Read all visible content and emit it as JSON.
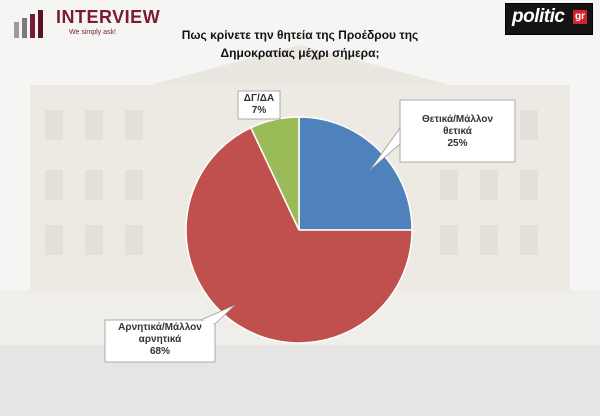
{
  "brand_left": {
    "name": "INTERVIEW",
    "tagline": "We simply ask!"
  },
  "brand_right": {
    "name": "politic",
    "suffix": "gr"
  },
  "chart_data": {
    "type": "pie",
    "title_lines": [
      "Πως κρίνετε την θητεία της Προέδρου της",
      "Δημοκρατίας μέχρι σήμερα;"
    ],
    "slices": [
      {
        "label_lines": [
          "Θετικά/Μάλλον",
          "θετικά"
        ],
        "value": 25,
        "display": "25%",
        "color": "#4f81bd"
      },
      {
        "label_lines": [
          "Αρνητικά/Μάλλον",
          "αρνητικά"
        ],
        "value": 68,
        "display": "68%",
        "color": "#c0504d"
      },
      {
        "label_lines": [
          "ΔΓ/ΔΑ"
        ],
        "value": 7,
        "display": "7%",
        "color": "#9bbb59"
      }
    ]
  }
}
